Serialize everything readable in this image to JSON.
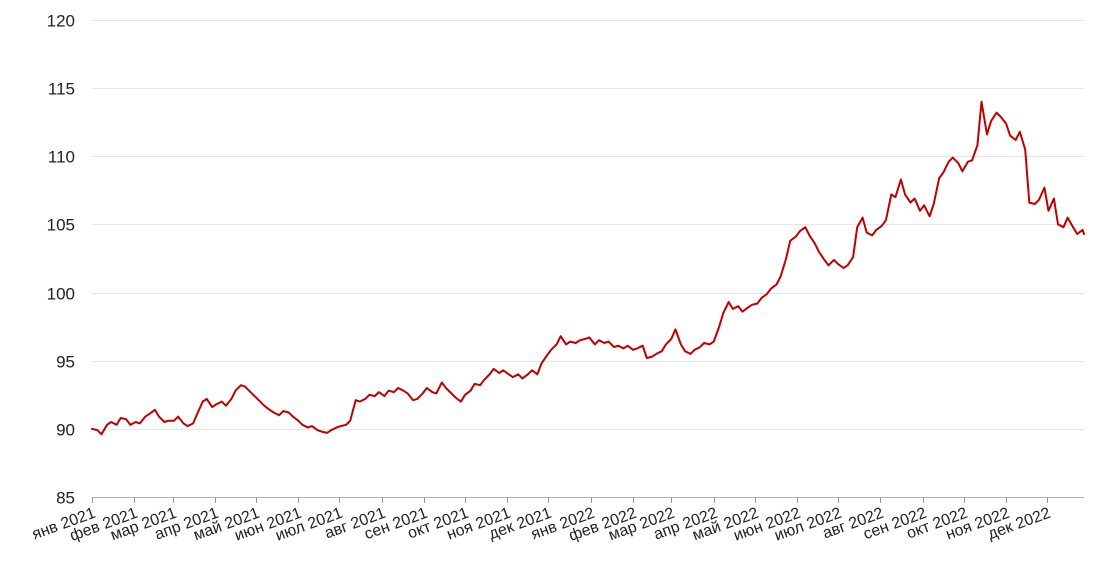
{
  "chart_data": {
    "type": "line",
    "title": "",
    "xlabel": "",
    "ylabel": "",
    "ylim": [
      85,
      120
    ],
    "yticks": [
      85,
      90,
      95,
      100,
      105,
      110,
      115,
      120
    ],
    "xlim": [
      "2021-01-01",
      "2022-12-28"
    ],
    "grid": "horizontal",
    "legend": "none",
    "line_color": "#c00000",
    "x_tick_labels": [
      {
        "date": "2021-01-01",
        "label": "янв 2021"
      },
      {
        "date": "2021-02-01",
        "label": "фев 2021"
      },
      {
        "date": "2021-03-01",
        "label": "мар 2021"
      },
      {
        "date": "2021-04-01",
        "label": "апр 2021"
      },
      {
        "date": "2021-05-01",
        "label": "май 2021"
      },
      {
        "date": "2021-06-01",
        "label": "июн 2021"
      },
      {
        "date": "2021-07-01",
        "label": "июл 2021"
      },
      {
        "date": "2021-08-01",
        "label": "авг 2021"
      },
      {
        "date": "2021-09-01",
        "label": "сен 2021"
      },
      {
        "date": "2021-10-01",
        "label": "окт 2021"
      },
      {
        "date": "2021-11-01",
        "label": "ноя 2021"
      },
      {
        "date": "2021-12-01",
        "label": "дек 2021"
      },
      {
        "date": "2022-01-01",
        "label": "янв 2022"
      },
      {
        "date": "2022-02-01",
        "label": "фев 2022"
      },
      {
        "date": "2022-03-01",
        "label": "мар 2022"
      },
      {
        "date": "2022-04-01",
        "label": "апр 2022"
      },
      {
        "date": "2022-05-01",
        "label": "май 2022"
      },
      {
        "date": "2022-06-01",
        "label": "июн 2022"
      },
      {
        "date": "2022-07-01",
        "label": "июл 2022"
      },
      {
        "date": "2022-08-01",
        "label": "авг 2022"
      },
      {
        "date": "2022-09-01",
        "label": "сен 2022"
      },
      {
        "date": "2022-10-01",
        "label": "окт 2022"
      },
      {
        "date": "2022-11-01",
        "label": "ноя 2022"
      },
      {
        "date": "2022-12-01",
        "label": "дек 2022"
      }
    ],
    "series": [
      {
        "x": [
          "2021-01-01",
          "2021-01-05",
          "2021-01-08",
          "2021-01-12",
          "2021-01-15",
          "2021-01-19",
          "2021-01-22",
          "2021-01-26",
          "2021-01-29",
          "2021-02-02",
          "2021-02-05",
          "2021-02-09",
          "2021-02-12",
          "2021-02-16",
          "2021-02-19",
          "2021-02-23",
          "2021-02-26",
          "2021-03-02",
          "2021-03-05",
          "2021-03-09",
          "2021-03-12",
          "2021-03-16",
          "2021-03-19",
          "2021-03-23",
          "2021-03-26",
          "2021-03-30",
          "2021-04-02",
          "2021-04-06",
          "2021-04-09",
          "2021-04-13",
          "2021-04-16",
          "2021-04-20",
          "2021-04-23",
          "2021-04-27",
          "2021-04-30",
          "2021-05-04",
          "2021-05-07",
          "2021-05-11",
          "2021-05-14",
          "2021-05-18",
          "2021-05-21",
          "2021-05-25",
          "2021-05-28",
          "2021-06-01",
          "2021-06-04",
          "2021-06-08",
          "2021-06-11",
          "2021-06-15",
          "2021-06-18",
          "2021-06-22",
          "2021-06-25",
          "2021-06-29",
          "2021-07-02",
          "2021-07-06",
          "2021-07-09",
          "2021-07-13",
          "2021-07-16",
          "2021-07-20",
          "2021-07-23",
          "2021-07-27",
          "2021-07-30",
          "2021-08-03",
          "2021-08-06",
          "2021-08-10",
          "2021-08-13",
          "2021-08-17",
          "2021-08-20",
          "2021-08-24",
          "2021-08-27",
          "2021-08-31",
          "2021-09-03",
          "2021-09-07",
          "2021-09-10",
          "2021-09-14",
          "2021-09-17",
          "2021-09-21",
          "2021-09-24",
          "2021-09-28",
          "2021-10-01",
          "2021-10-05",
          "2021-10-08",
          "2021-10-12",
          "2021-10-15",
          "2021-10-19",
          "2021-10-22",
          "2021-10-26",
          "2021-10-29",
          "2021-11-02",
          "2021-11-05",
          "2021-11-09",
          "2021-11-12",
          "2021-11-16",
          "2021-11-19",
          "2021-11-23",
          "2021-11-26",
          "2021-11-30",
          "2021-12-03",
          "2021-12-07",
          "2021-12-10",
          "2021-12-14",
          "2021-12-17",
          "2021-12-21",
          "2021-12-24",
          "2021-12-28",
          "2021-12-31",
          "2022-01-04",
          "2022-01-07",
          "2022-01-11",
          "2022-01-14",
          "2022-01-18",
          "2022-01-21",
          "2022-01-25",
          "2022-01-28",
          "2022-02-01",
          "2022-02-04",
          "2022-02-08",
          "2022-02-11",
          "2022-02-15",
          "2022-02-18",
          "2022-02-22",
          "2022-02-25",
          "2022-03-01",
          "2022-03-04",
          "2022-03-08",
          "2022-03-11",
          "2022-03-15",
          "2022-03-18",
          "2022-03-22",
          "2022-03-25",
          "2022-03-29",
          "2022-04-01",
          "2022-04-05",
          "2022-04-08",
          "2022-04-12",
          "2022-04-15",
          "2022-04-19",
          "2022-04-22",
          "2022-04-26",
          "2022-04-29",
          "2022-05-03",
          "2022-05-06",
          "2022-05-10",
          "2022-05-13",
          "2022-05-17",
          "2022-05-20",
          "2022-05-24",
          "2022-05-27",
          "2022-05-31",
          "2022-06-03",
          "2022-06-07",
          "2022-06-10",
          "2022-06-14",
          "2022-06-17",
          "2022-06-21",
          "2022-06-24",
          "2022-06-28",
          "2022-07-01",
          "2022-07-05",
          "2022-07-08",
          "2022-07-12",
          "2022-07-15",
          "2022-07-19",
          "2022-07-22",
          "2022-07-26",
          "2022-07-29",
          "2022-08-02",
          "2022-08-05",
          "2022-08-09",
          "2022-08-12",
          "2022-08-16",
          "2022-08-19",
          "2022-08-23",
          "2022-08-26",
          "2022-08-30",
          "2022-09-02",
          "2022-09-06",
          "2022-09-09",
          "2022-09-13",
          "2022-09-16",
          "2022-09-20",
          "2022-09-23",
          "2022-09-27",
          "2022-09-30",
          "2022-10-04",
          "2022-10-07",
          "2022-10-11",
          "2022-10-14",
          "2022-10-18",
          "2022-10-21",
          "2022-10-25",
          "2022-10-28",
          "2022-11-01",
          "2022-11-04",
          "2022-11-08",
          "2022-11-11",
          "2022-11-15",
          "2022-11-18",
          "2022-11-22",
          "2022-11-25",
          "2022-11-29",
          "2022-12-02",
          "2022-12-06",
          "2022-12-09",
          "2022-12-13",
          "2022-12-16",
          "2022-12-20",
          "2022-12-23",
          "2022-12-27",
          "2022-12-28"
        ],
        "values": [
          90.0,
          89.9,
          89.6,
          90.3,
          90.5,
          90.3,
          90.8,
          90.7,
          90.3,
          90.5,
          90.4,
          90.9,
          91.1,
          91.4,
          90.9,
          90.5,
          90.6,
          90.6,
          90.9,
          90.4,
          90.2,
          90.4,
          91.1,
          92.0,
          92.2,
          91.6,
          91.8,
          92.0,
          91.7,
          92.2,
          92.8,
          93.2,
          93.1,
          92.7,
          92.4,
          92.0,
          91.7,
          91.4,
          91.2,
          91.0,
          91.3,
          91.2,
          90.9,
          90.6,
          90.3,
          90.1,
          90.2,
          89.9,
          89.8,
          89.7,
          89.9,
          90.1,
          90.2,
          90.3,
          90.6,
          92.1,
          92.0,
          92.2,
          92.5,
          92.4,
          92.7,
          92.4,
          92.8,
          92.7,
          93.0,
          92.8,
          92.6,
          92.1,
          92.2,
          92.6,
          93.0,
          92.7,
          92.6,
          93.4,
          93.0,
          92.6,
          92.3,
          92.0,
          92.5,
          92.8,
          93.3,
          93.2,
          93.6,
          94.0,
          94.4,
          94.1,
          94.3,
          94.0,
          93.8,
          94.0,
          93.7,
          94.0,
          94.3,
          94.0,
          94.8,
          95.4,
          95.8,
          96.2,
          96.8,
          96.2,
          96.4,
          96.3,
          96.5,
          96.6,
          96.7,
          96.2,
          96.5,
          96.3,
          96.4,
          96.0,
          96.1,
          95.9,
          96.1,
          95.8,
          95.9,
          96.1,
          95.2,
          95.3,
          95.5,
          95.7,
          96.2,
          96.6,
          97.3,
          96.2,
          95.7,
          95.5,
          95.8,
          96.0,
          96.3,
          96.2,
          96.4,
          97.5,
          98.5,
          99.3,
          98.8,
          99.0,
          98.6,
          98.9,
          99.1,
          99.2,
          99.6,
          99.9,
          100.3,
          100.6,
          101.2,
          102.5,
          103.8,
          104.1,
          104.5,
          104.8,
          104.2,
          103.6,
          103.0,
          102.4,
          102.0,
          102.4,
          102.1,
          101.8,
          102.0,
          102.6,
          104.8,
          105.5,
          104.4,
          104.2,
          104.6,
          104.9,
          105.3,
          107.2,
          107.0,
          108.3,
          107.2,
          106.6,
          106.9,
          106.0,
          106.4,
          105.6,
          106.5,
          108.4,
          108.8,
          109.6,
          109.9,
          109.5,
          108.9,
          109.6,
          109.7,
          110.8,
          114.0,
          111.6,
          112.6,
          113.2,
          112.9,
          112.4,
          111.5,
          111.2,
          111.8,
          110.5,
          106.6,
          106.5,
          106.8,
          107.7,
          106.0,
          106.9,
          105.0,
          104.8,
          105.5,
          104.8,
          104.3,
          104.6,
          104.3
        ]
      }
    ]
  }
}
